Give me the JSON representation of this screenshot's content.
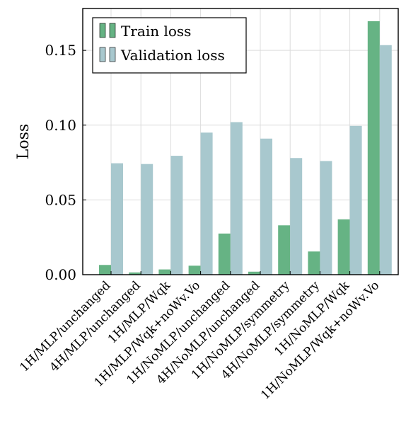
{
  "chart_data": {
    "type": "bar",
    "ylabel": "Loss",
    "xlabel": "",
    "ylim": [
      0,
      0.178
    ],
    "yticks": [
      0.0,
      0.05,
      0.1,
      0.15
    ],
    "ytick_labels": [
      "0.00",
      "0.05",
      "0.10",
      "0.15"
    ],
    "grid": true,
    "legend_position": "top-left",
    "categories": [
      "1H/MLP/unchanged",
      "4H/MLP/unchanged",
      "1H/MLP/Wqk",
      "1H/MLP/Wqk+noWv.Vo",
      "1H/NoMLP/unchanged",
      "4H/NoMLP/unchanged",
      "1H/NoMLP/symmetry",
      "4H/NoMLP/symmetry",
      "1H/NoMLP/Wqk",
      "1H/NoMLP/Wqk+noWv.Vo"
    ],
    "series": [
      {
        "name": "Train loss",
        "color": "#66b384",
        "values": [
          0.0065,
          0.0015,
          0.0035,
          0.006,
          0.0275,
          0.002,
          0.033,
          0.0155,
          0.037,
          0.1695
        ]
      },
      {
        "name": "Validation loss",
        "color": "#a8c8ce",
        "values": [
          0.0745,
          0.074,
          0.0795,
          0.095,
          0.102,
          0.091,
          0.078,
          0.076,
          0.0995,
          0.1535
        ]
      }
    ]
  }
}
